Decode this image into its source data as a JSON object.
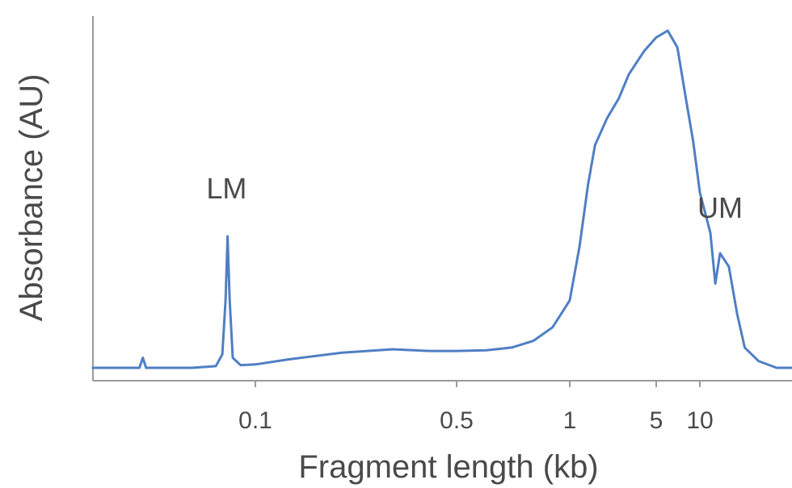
{
  "chart_data": {
    "type": "line",
    "title": "",
    "xlabel": "Fragment length (kb)",
    "ylabel": "Absorbance (AU)",
    "xscale": "nonlinear (electropherogram, labeled ticks)",
    "x_ticks": [
      {
        "label": "0.1",
        "kb": 0.1
      },
      {
        "label": "0.5",
        "kb": 0.5
      },
      {
        "label": "1",
        "kb": 1
      },
      {
        "label": "5",
        "kb": 5
      },
      {
        "label": "10",
        "kb": 10
      }
    ],
    "ylim": [
      0,
      1.0
    ],
    "grid": false,
    "legend": "none",
    "color": "#4f7fc4",
    "annotations": [
      {
        "text": "LM",
        "kb": 0.085
      },
      {
        "text": "UM",
        "kb": 12
      }
    ],
    "series": [
      {
        "points": [
          [
            0.04,
            0.0
          ],
          [
            0.052,
            0.0
          ],
          [
            0.053,
            0.03
          ],
          [
            0.054,
            0.0
          ],
          [
            0.07,
            0.0
          ],
          [
            0.08,
            0.005
          ],
          [
            0.083,
            0.04
          ],
          [
            0.0845,
            0.2
          ],
          [
            0.0855,
            0.39
          ],
          [
            0.0865,
            0.2
          ],
          [
            0.088,
            0.03
          ],
          [
            0.092,
            0.008
          ],
          [
            0.1,
            0.01
          ],
          [
            0.13,
            0.025
          ],
          [
            0.2,
            0.045
          ],
          [
            0.3,
            0.055
          ],
          [
            0.4,
            0.05
          ],
          [
            0.5,
            0.05
          ],
          [
            0.6,
            0.052
          ],
          [
            0.7,
            0.06
          ],
          [
            0.8,
            0.08
          ],
          [
            0.9,
            0.12
          ],
          [
            1.0,
            0.2
          ],
          [
            1.2,
            0.36
          ],
          [
            1.4,
            0.54
          ],
          [
            1.6,
            0.66
          ],
          [
            2.0,
            0.74
          ],
          [
            2.5,
            0.8
          ],
          [
            3.0,
            0.87
          ],
          [
            4.0,
            0.94
          ],
          [
            5.0,
            0.98
          ],
          [
            6.0,
            1.0
          ],
          [
            7.0,
            0.95
          ],
          [
            8.0,
            0.8
          ],
          [
            9.0,
            0.67
          ],
          [
            10.0,
            0.52
          ],
          [
            11.0,
            0.4
          ],
          [
            11.5,
            0.25
          ],
          [
            12.0,
            0.34
          ],
          [
            13.0,
            0.3
          ],
          [
            14.0,
            0.16
          ],
          [
            15.0,
            0.06
          ],
          [
            17.0,
            0.02
          ],
          [
            20.0,
            0.0
          ],
          [
            23.0,
            0.0
          ]
        ]
      }
    ]
  }
}
